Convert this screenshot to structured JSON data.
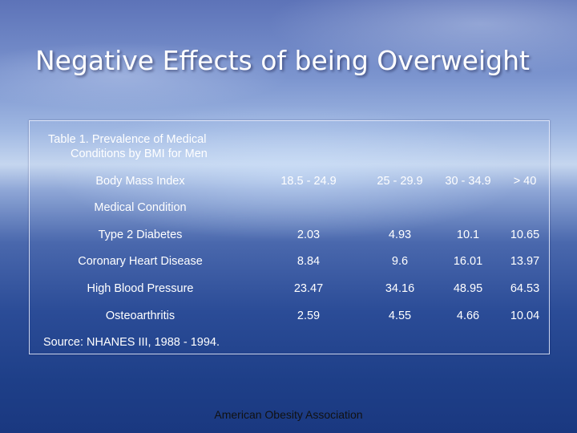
{
  "title": "Negative Effects of being Overweight",
  "table": {
    "caption_line1": "Table 1. Prevalence of Medical",
    "caption_line2": "Conditions by BMI for Men",
    "header_label": "Body Mass Index",
    "subheader_label": "Medical Condition",
    "columns": [
      "18.5 - 24.9",
      "25 - 29.9",
      "30 - 34.9",
      "> 40"
    ],
    "rows": [
      {
        "condition": "Type 2 Diabetes",
        "values": [
          "2.03",
          "4.93",
          "10.1",
          "10.65"
        ]
      },
      {
        "condition": "Coronary Heart Disease",
        "values": [
          "8.84",
          "9.6",
          "16.01",
          "13.97"
        ]
      },
      {
        "condition": "High Blood Pressure",
        "values": [
          "23.47",
          "34.16",
          "48.95",
          "64.53"
        ]
      },
      {
        "condition": "Osteoarthritis",
        "values": [
          "2.59",
          "4.55",
          "4.66",
          "10.04"
        ]
      }
    ],
    "source": "Source: NHANES III, 1988 - 1994."
  },
  "footer": "American Obesity Association"
}
